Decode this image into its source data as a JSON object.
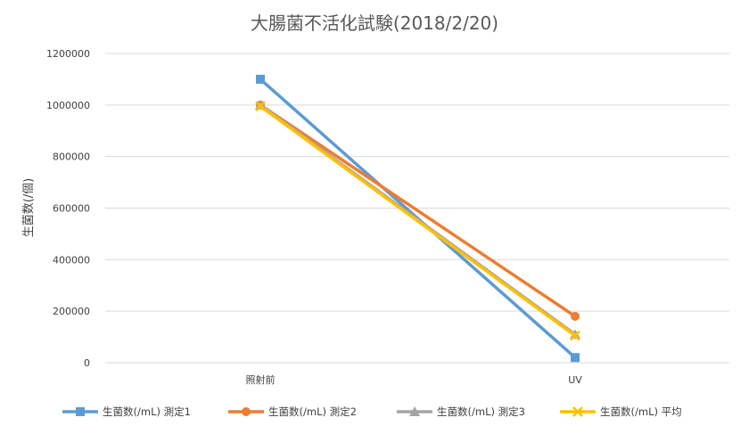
{
  "chart_data": {
    "type": "line",
    "title": "大腸菌不活化試験(2018/2/20)",
    "xlabel": "",
    "ylabel": "生菌数(/個)",
    "categories": [
      "照射前",
      "UV"
    ],
    "ylim": [
      0,
      1200000
    ],
    "yticks": [
      0,
      200000,
      400000,
      600000,
      800000,
      1000000,
      1200000
    ],
    "ytick_labels": [
      "0",
      "200000",
      "400000",
      "600000",
      "800000",
      "1000000",
      "1200000"
    ],
    "grid": true,
    "legend_position": "bottom",
    "series": [
      {
        "name": "生菌数(/mL) 測定1",
        "values": [
          1100000,
          20000
        ],
        "color": "#5b9bd5",
        "marker": "square"
      },
      {
        "name": "生菌数(/mL) 測定2",
        "values": [
          1000000,
          180000
        ],
        "color": "#ed7d31",
        "marker": "circle"
      },
      {
        "name": "生菌数(/mL) 測定3",
        "values": [
          1000000,
          110000
        ],
        "color": "#a5a5a5",
        "marker": "triangle"
      },
      {
        "name": "生菌数(/mL) 平均",
        "values": [
          995000,
          105000
        ],
        "color": "#ffc000",
        "marker": "x"
      }
    ]
  }
}
